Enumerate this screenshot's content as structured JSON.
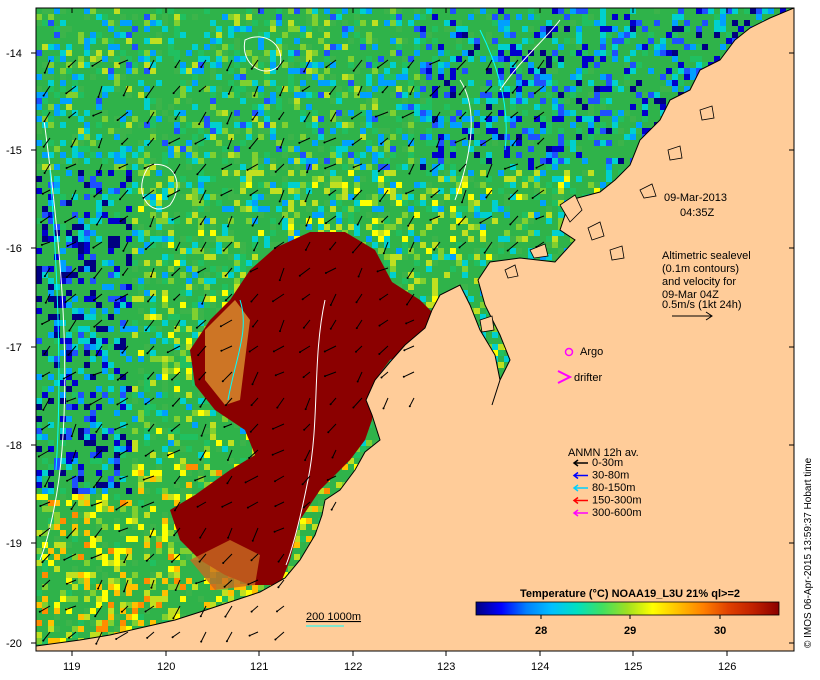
{
  "map": {
    "lon_ticks": [
      "119",
      "120",
      "121",
      "122",
      "123",
      "124",
      "125",
      "126"
    ],
    "lat_ticks": [
      "-14",
      "-15",
      "-16",
      "-17",
      "-18",
      "-19",
      "-20"
    ],
    "timestamp_date": "09-Mar-2013",
    "timestamp_time": "04:35Z",
    "altimetry_lines": [
      "Altimetric sealevel",
      "(0.1m contours)",
      "and velocity for",
      "09-Mar 04Z",
      "0.5m/s (1kt 24h)"
    ],
    "argo_label": "Argo",
    "drifter_label": "drifter",
    "depth_legend_label": "200  1000m",
    "credit": "© IMOS 06-Apr-2015 13:59:37 Hobart time"
  },
  "anmn_legend": {
    "title": "ANMN 12h av.",
    "items": [
      {
        "label": "0-30m",
        "color": "#000000"
      },
      {
        "label": "30-80m",
        "color": "#0000ff"
      },
      {
        "label": "80-150m",
        "color": "#00d0ff"
      },
      {
        "label": "150-300m",
        "color": "#ff0000"
      },
      {
        "label": "300-600m",
        "color": "#ff00ff"
      }
    ]
  },
  "colorbar": {
    "title": "Temperature (°C) NOAA19_L3U 21% ql>=2",
    "ticks": [
      "28",
      "29",
      "30"
    ],
    "colors": [
      "#000080",
      "#0000ff",
      "#0080ff",
      "#00c0ff",
      "#00e0c0",
      "#40e060",
      "#a0e020",
      "#ffff00",
      "#ffc000",
      "#ff8000",
      "#e04000",
      "#c02000",
      "#8b0000"
    ]
  },
  "colors": {
    "land": "#ffcc99",
    "warm_core": "#8b0000",
    "coast": "#000000"
  }
}
